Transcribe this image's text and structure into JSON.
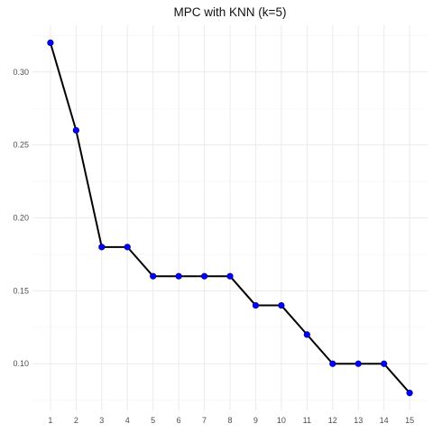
{
  "chart_data": {
    "type": "line",
    "title": "MPC with KNN (k=5)",
    "xlabel": "",
    "ylabel": "",
    "x": [
      1,
      2,
      3,
      4,
      5,
      6,
      7,
      8,
      9,
      10,
      11,
      12,
      13,
      14,
      15
    ],
    "series": [
      {
        "values": [
          0.32,
          0.26,
          0.18,
          0.18,
          0.16,
          0.16,
          0.16,
          0.16,
          0.14,
          0.14,
          0.12,
          0.1,
          0.1,
          0.1,
          0.08
        ],
        "line_color": "#000000",
        "point_color": "#0000ff"
      }
    ],
    "xlim": [
      0.3,
      15.7
    ],
    "ylim": [
      0.068,
      0.332
    ],
    "x_ticks": [
      1,
      2,
      3,
      4,
      5,
      6,
      7,
      8,
      9,
      10,
      11,
      12,
      13,
      14,
      15
    ],
    "x_tick_labels": [
      "1",
      "2",
      "3",
      "4",
      "5",
      "6",
      "7",
      "8",
      "9",
      "10",
      "11",
      "12",
      "13",
      "14",
      "15"
    ],
    "y_ticks": [
      0.1,
      0.15,
      0.2,
      0.25,
      0.3
    ],
    "y_tick_labels": [
      "0.10",
      "0.15",
      "0.20",
      "0.25",
      "0.30"
    ],
    "grid": true,
    "legend": "none"
  }
}
